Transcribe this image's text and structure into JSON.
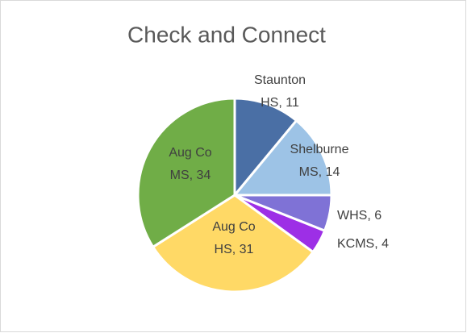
{
  "chart_data": {
    "type": "pie",
    "title": "Check and Connect",
    "categories": [
      "Staunton HS",
      "Shelburne MS",
      "WHS",
      "KCMS",
      "Aug Co HS",
      "Aug Co MS"
    ],
    "values": [
      11,
      14,
      6,
      4,
      31,
      34
    ],
    "value_labels": [
      "Staunton HS, 11",
      "Shelburne MS, 14",
      "WHS, 6",
      "KCMS, 4",
      "Aug Co HS, 31",
      "Aug Co MS, 34"
    ],
    "colors": [
      "#4a6fa5",
      "#9dc3e6",
      "#7f72d6",
      "#9d2fe6",
      "#ffd966",
      "#70ad47"
    ]
  }
}
